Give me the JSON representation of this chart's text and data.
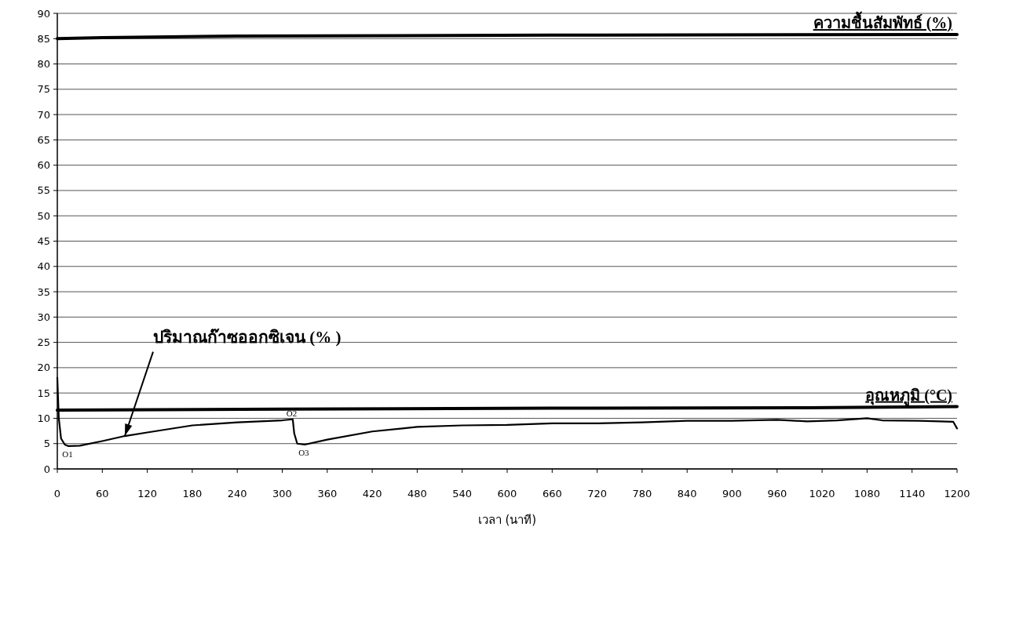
{
  "chart_data": {
    "type": "line",
    "xlabel": "เวลา (นาที)",
    "xlim": [
      0,
      1200
    ],
    "xticks": [
      0,
      60,
      120,
      180,
      240,
      300,
      360,
      420,
      480,
      540,
      600,
      660,
      720,
      780,
      840,
      900,
      960,
      1020,
      1080,
      1140,
      1200
    ],
    "ylim": [
      0,
      90
    ],
    "yticks": [
      0,
      5,
      10,
      15,
      20,
      25,
      30,
      35,
      40,
      45,
      50,
      55,
      60,
      65,
      70,
      75,
      80,
      85,
      90
    ],
    "grid": "y",
    "marker": "none",
    "line_style": "solid",
    "series": [
      {
        "name": "ความชื้นสัมพัทธ์ (%)",
        "color": "#000000",
        "x": [
          0,
          60,
          240,
          660,
          1200
        ],
        "values": [
          85,
          85.2,
          85.5,
          85.7,
          85.8
        ]
      },
      {
        "name": "อุณหภูมิ (°C)",
        "color": "#000000",
        "x": [
          0,
          300,
          660,
          1000,
          1200
        ],
        "values": [
          11.6,
          11.8,
          12,
          12.1,
          12.3
        ]
      },
      {
        "name": "ปริมาณก๊าซออกซิเจน (% )",
        "color": "#000000",
        "x": [
          0,
          2,
          5,
          10,
          15,
          30,
          60,
          90,
          120,
          180,
          240,
          300,
          314,
          316,
          320,
          330,
          360,
          420,
          480,
          540,
          600,
          660,
          720,
          780,
          840,
          900,
          960,
          1000,
          1040,
          1080,
          1100,
          1150,
          1195,
          1200
        ],
        "values": [
          18,
          10,
          6,
          4.8,
          4.5,
          4.6,
          5.5,
          6.5,
          7.2,
          8.6,
          9.2,
          9.6,
          9.8,
          7,
          5,
          4.8,
          5.8,
          7.4,
          8.3,
          8.6,
          8.7,
          9,
          9,
          9.2,
          9.5,
          9.5,
          9.7,
          9.4,
          9.6,
          10,
          9.6,
          9.5,
          9.3,
          8
        ]
      }
    ],
    "annotations": [
      {
        "text": "O1",
        "x": 15,
        "y": 4.5
      },
      {
        "text": "O2",
        "x": 314,
        "y": 9.8
      },
      {
        "text": "O3",
        "x": 330,
        "y": 4.8
      }
    ]
  }
}
